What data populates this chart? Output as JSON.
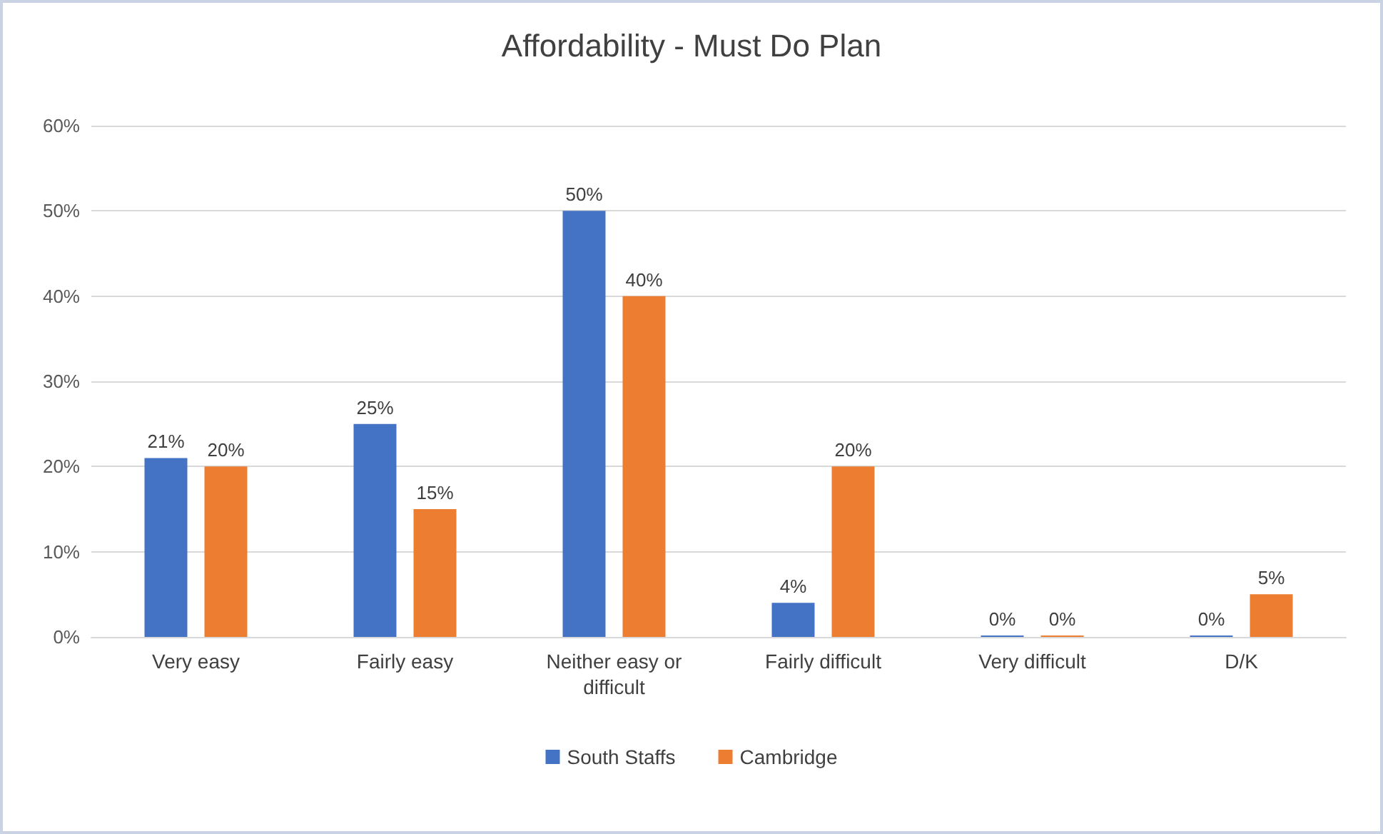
{
  "chart_data": {
    "type": "bar",
    "title": "Affordability - Must Do Plan",
    "categories": [
      "Very easy",
      "Fairly easy",
      "Neither easy or\ndifficult",
      "Fairly difficult",
      "Very difficult",
      "D/K"
    ],
    "series": [
      {
        "name": "South Staffs",
        "color": "#4472c4",
        "values": [
          21,
          25,
          50,
          4,
          0,
          0
        ],
        "value_labels": [
          "21%",
          "25%",
          "50%",
          "4%",
          "0%",
          "0%"
        ]
      },
      {
        "name": "Cambridge",
        "color": "#ed7d31",
        "values": [
          20,
          15,
          40,
          20,
          0,
          5
        ],
        "value_labels": [
          "20%",
          "15%",
          "40%",
          "20%",
          "0%",
          "5%"
        ]
      }
    ],
    "ylim": [
      0,
      60
    ],
    "yticks": [
      {
        "value": 0,
        "label": "0%"
      },
      {
        "value": 10,
        "label": "10%"
      },
      {
        "value": 20,
        "label": "20%"
      },
      {
        "value": 30,
        "label": "30%"
      },
      {
        "value": 40,
        "label": "40%"
      },
      {
        "value": 50,
        "label": "50%"
      },
      {
        "value": 60,
        "label": "60%"
      }
    ],
    "grid": "y",
    "legend": "bottom"
  }
}
